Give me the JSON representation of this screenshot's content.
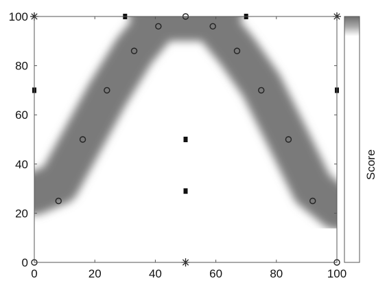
{
  "chart_data": {
    "type": "scatter",
    "title": "",
    "xlabel": "",
    "ylabel": "",
    "xlim": [
      0,
      100
    ],
    "ylim": [
      0,
      100
    ],
    "x_ticks": [
      0,
      20,
      40,
      60,
      80,
      100
    ],
    "y_ticks": [
      0,
      20,
      40,
      60,
      80,
      100
    ],
    "x_tick_labels": [
      "0",
      "20",
      "40",
      "60",
      "80",
      "100"
    ],
    "y_tick_labels": [
      "0",
      "20",
      "40",
      "60",
      "80",
      "100"
    ],
    "grid": false,
    "background_field": {
      "type": "contour_band",
      "description_color": "#7a7a7a",
      "band_centerline": [
        [
          0,
          28
        ],
        [
          8,
          32
        ],
        [
          16,
          50
        ],
        [
          24,
          68
        ],
        [
          33,
          86
        ],
        [
          41,
          98
        ],
        [
          50,
          100
        ],
        [
          59,
          98
        ],
        [
          67,
          86
        ],
        [
          75,
          72
        ],
        [
          84,
          50
        ],
        [
          92,
          30
        ],
        [
          100,
          22
        ]
      ],
      "top_fill": true
    },
    "series": [
      {
        "marker": "circle",
        "points": [
          [
            0,
            0
          ],
          [
            8,
            25
          ],
          [
            16,
            50
          ],
          [
            24,
            70
          ],
          [
            33,
            86
          ],
          [
            41,
            96
          ],
          [
            50,
            100
          ],
          [
            59,
            96
          ],
          [
            67,
            86
          ],
          [
            75,
            70
          ],
          [
            84,
            50
          ],
          [
            92,
            25
          ],
          [
            100,
            0
          ]
        ]
      },
      {
        "marker": "square",
        "points": [
          [
            0,
            70
          ],
          [
            30,
            100
          ],
          [
            50,
            50
          ],
          [
            50,
            29
          ],
          [
            70,
            100
          ],
          [
            100,
            70
          ]
        ]
      },
      {
        "marker": "star",
        "points": [
          [
            0,
            100
          ],
          [
            50,
            0
          ],
          [
            100,
            100
          ]
        ]
      }
    ],
    "colorbar": {
      "label": "Score",
      "colors": [
        "#6e6e6e",
        "#ffffff"
      ]
    }
  }
}
